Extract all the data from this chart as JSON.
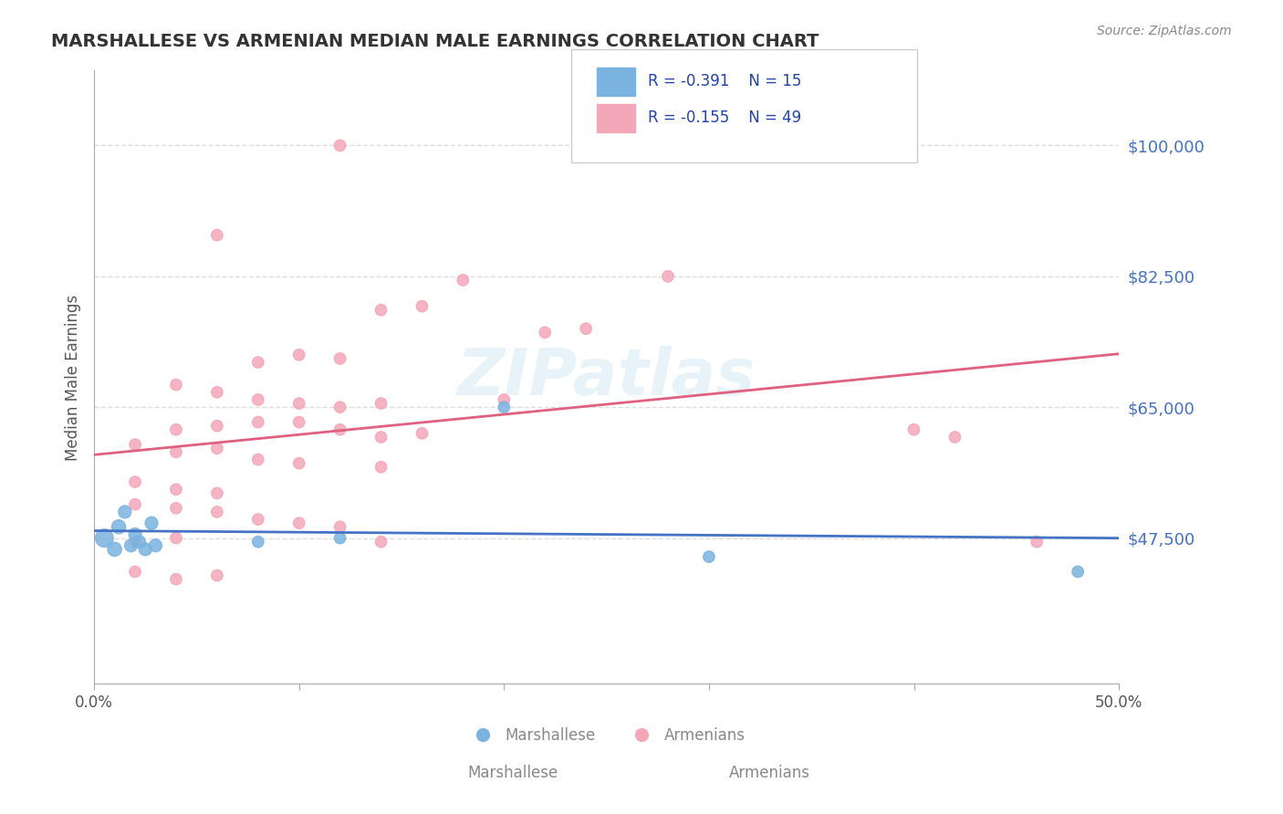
{
  "title": "MARSHALLESE VS ARMENIAN MEDIAN MALE EARNINGS CORRELATION CHART",
  "source": "Source: ZipAtlas.com",
  "xlabel": "",
  "ylabel": "Median Male Earnings",
  "xlim": [
    0.0,
    0.5
  ],
  "ylim": [
    28000,
    110000
  ],
  "yticks": [
    47500,
    65000,
    82500,
    100000
  ],
  "ytick_labels": [
    "$47,500",
    "$65,000",
    "$82,500",
    "$100,000"
  ],
  "xticks": [
    0.0,
    0.1,
    0.2,
    0.3,
    0.4,
    0.5
  ],
  "xtick_labels": [
    "0.0%",
    "",
    "",
    "",
    "",
    "50.0%"
  ],
  "watermark": "ZIPatlas",
  "legend_r1": "R = -0.391",
  "legend_n1": "N = 15",
  "legend_r2": "R = -0.155",
  "legend_n2": "N = 49",
  "marshallese_color": "#7ab3e0",
  "armenian_color": "#f4a7b9",
  "marshallese_line_color": "#4472c4",
  "armenian_line_color": "#e06080",
  "title_color": "#333333",
  "axis_label_color": "#555555",
  "tick_label_color_right": "#4472c4",
  "background_color": "#ffffff",
  "grid_color": "#dddddd",
  "marshallese_points": [
    [
      0.005,
      47500
    ],
    [
      0.01,
      46000
    ],
    [
      0.012,
      49000
    ],
    [
      0.015,
      51000
    ],
    [
      0.018,
      46500
    ],
    [
      0.02,
      48000
    ],
    [
      0.022,
      47000
    ],
    [
      0.025,
      46000
    ],
    [
      0.028,
      49500
    ],
    [
      0.03,
      46500
    ],
    [
      0.08,
      47000
    ],
    [
      0.12,
      47500
    ],
    [
      0.2,
      65000
    ],
    [
      0.3,
      45000
    ],
    [
      0.48,
      43000
    ]
  ],
  "armenian_points": [
    [
      0.12,
      100000
    ],
    [
      0.06,
      88000
    ],
    [
      0.18,
      82000
    ],
    [
      0.28,
      82500
    ],
    [
      0.14,
      78000
    ],
    [
      0.16,
      78500
    ],
    [
      0.22,
      75000
    ],
    [
      0.24,
      75500
    ],
    [
      0.1,
      72000
    ],
    [
      0.08,
      71000
    ],
    [
      0.12,
      71500
    ],
    [
      0.04,
      68000
    ],
    [
      0.06,
      67000
    ],
    [
      0.08,
      66000
    ],
    [
      0.1,
      65500
    ],
    [
      0.12,
      65000
    ],
    [
      0.14,
      65500
    ],
    [
      0.2,
      66000
    ],
    [
      0.04,
      62000
    ],
    [
      0.06,
      62500
    ],
    [
      0.08,
      63000
    ],
    [
      0.1,
      63000
    ],
    [
      0.12,
      62000
    ],
    [
      0.14,
      61000
    ],
    [
      0.16,
      61500
    ],
    [
      0.02,
      60000
    ],
    [
      0.04,
      59000
    ],
    [
      0.06,
      59500
    ],
    [
      0.08,
      58000
    ],
    [
      0.1,
      57500
    ],
    [
      0.14,
      57000
    ],
    [
      0.02,
      55000
    ],
    [
      0.04,
      54000
    ],
    [
      0.06,
      53500
    ],
    [
      0.02,
      52000
    ],
    [
      0.04,
      51500
    ],
    [
      0.06,
      51000
    ],
    [
      0.08,
      50000
    ],
    [
      0.1,
      49500
    ],
    [
      0.12,
      49000
    ],
    [
      0.02,
      47000
    ],
    [
      0.04,
      47500
    ],
    [
      0.14,
      47000
    ],
    [
      0.02,
      43000
    ],
    [
      0.04,
      42000
    ],
    [
      0.06,
      42500
    ],
    [
      0.4,
      62000
    ],
    [
      0.42,
      61000
    ],
    [
      0.46,
      47000
    ]
  ],
  "marshallese_bubble_sizes": [
    200,
    120,
    120,
    100,
    100,
    100,
    100,
    100,
    100,
    100,
    80,
    80,
    80,
    80,
    80
  ],
  "armenian_bubble_sizes": [
    80,
    80,
    80,
    80,
    80,
    80,
    80,
    80,
    80,
    80,
    80,
    80,
    80,
    80,
    80,
    80,
    80,
    80,
    80,
    80,
    80,
    80,
    80,
    80,
    80,
    80,
    80,
    80,
    80,
    80,
    80,
    80,
    80,
    80,
    80,
    80,
    80,
    80,
    80,
    80,
    80,
    80,
    80,
    80,
    80,
    80,
    80,
    80,
    80
  ]
}
